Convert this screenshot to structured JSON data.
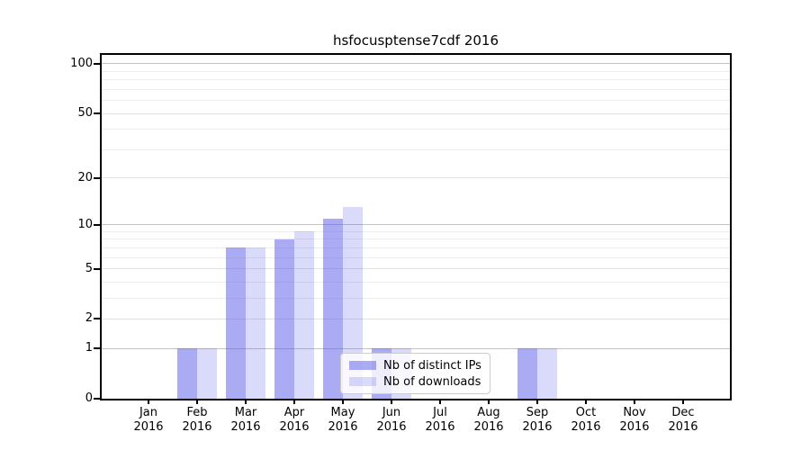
{
  "title": "hsfocusptense7cdf 2016",
  "chart_data": {
    "type": "bar",
    "title": "hsfocusptense7cdf 2016",
    "xlabel": "",
    "ylabel": "",
    "categories": [
      "Jan 2016",
      "Feb 2016",
      "Mar 2016",
      "Apr 2016",
      "May 2016",
      "Jun 2016",
      "Jul 2016",
      "Aug 2016",
      "Sep 2016",
      "Oct 2016",
      "Nov 2016",
      "Dec 2016"
    ],
    "series": [
      {
        "name": "Nb of distinct IPs",
        "fill": "rgba(87,87,232,0.50)",
        "values": [
          0,
          1,
          7,
          8,
          11,
          1,
          0,
          0,
          1,
          0,
          0,
          0
        ]
      },
      {
        "name": "Nb of downloads",
        "fill": "rgba(87,87,232,0.22)",
        "values": [
          0,
          1,
          7,
          9,
          13,
          1,
          0,
          0,
          1,
          0,
          0,
          0
        ]
      }
    ],
    "yscale": "log1p",
    "ylim": [
      0,
      114
    ],
    "ytick_values": [
      0,
      1,
      2,
      5,
      10,
      20,
      50,
      100
    ],
    "ytick_labels": [
      "0",
      "1",
      "2",
      "5",
      "10",
      "20",
      "50",
      "100"
    ],
    "major_gridlines": [
      1,
      10,
      100
    ],
    "labeled_gridlines": [
      2,
      5,
      20,
      50
    ],
    "minor_gridlines": [
      3,
      4,
      6,
      7,
      8,
      9,
      30,
      40,
      60,
      70,
      80,
      90
    ],
    "grid": true,
    "legend_position": "lower center",
    "colors": {
      "bar_base": "#5757e8",
      "major_grid": "#c2c2c2",
      "labeled_grid": "#e2e2e2",
      "minor_grid": "#ededed",
      "axis": "#000000",
      "text": "#000000"
    }
  }
}
